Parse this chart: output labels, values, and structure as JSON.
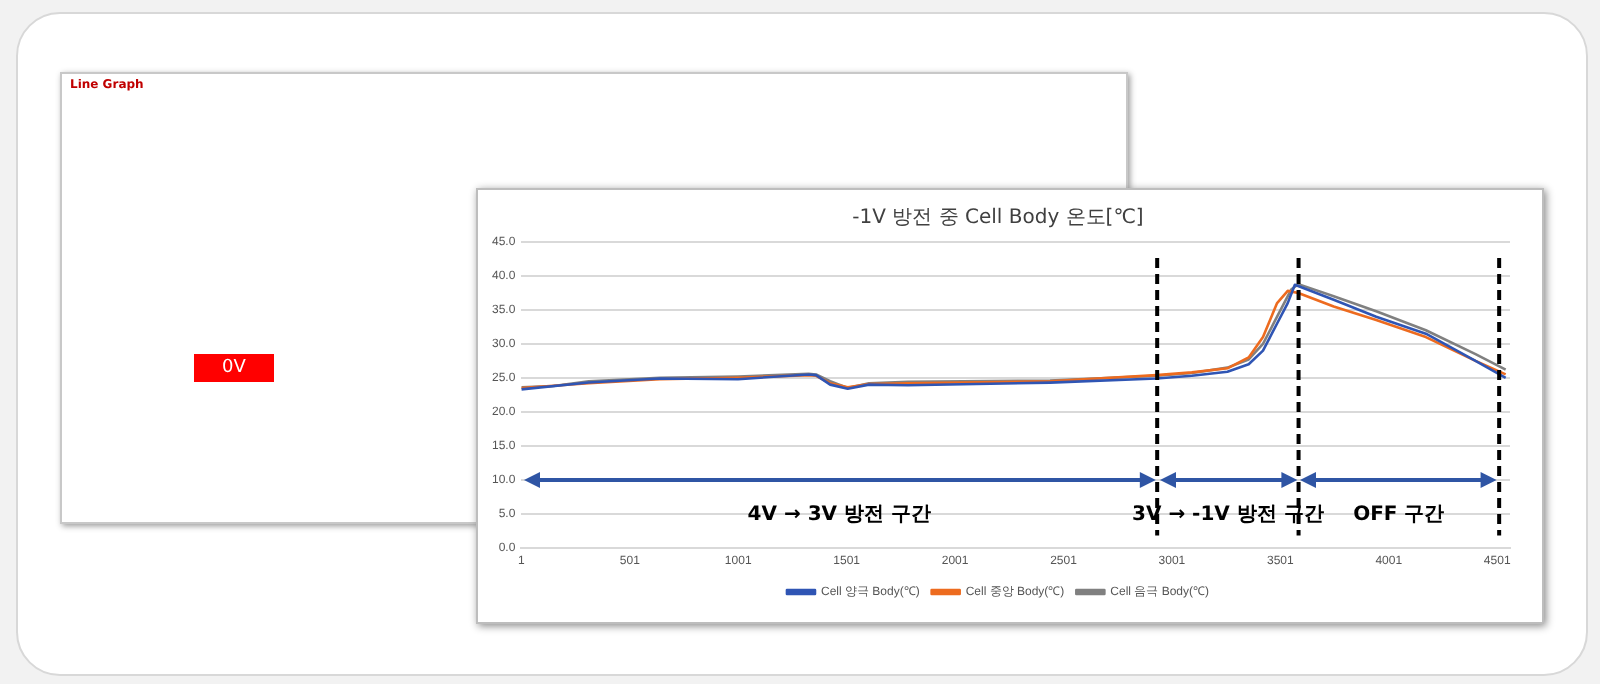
{
  "chart_data": {
    "type": "line",
    "title": "-1V 방전 중 Cell Body 온도[℃]",
    "xlim": [
      1,
      4560
    ],
    "xticks": [
      1,
      501,
      1001,
      1501,
      2001,
      2501,
      3001,
      3501,
      4001,
      4501
    ],
    "ylim": [
      0,
      45
    ],
    "yticks": [
      {
        "value": 0,
        "label": "0.0"
      },
      {
        "value": 5,
        "label": "5.0"
      },
      {
        "value": 10,
        "label": "10.0"
      },
      {
        "value": 15,
        "label": "15.0"
      },
      {
        "value": 20,
        "label": "20.0"
      },
      {
        "value": 25,
        "label": "25.0"
      },
      {
        "value": 30,
        "label": "30.0"
      },
      {
        "value": 35,
        "label": "35.0"
      },
      {
        "value": 40,
        "label": "40.0"
      },
      {
        "value": 45,
        "label": "45.0"
      }
    ],
    "grid": "y",
    "legend": "bottom",
    "marker": "none",
    "line_style": "solid",
    "series": [
      {
        "name": "Cell 양극 Body(℃)",
        "color": "#2f55b4",
        "x": [
          1,
          312,
          640,
          1000,
          1326,
          1360,
          1425,
          1506,
          1604,
          1784,
          2439,
          2930,
          3093,
          3257,
          3355,
          3421,
          3486,
          3535,
          3568,
          3747,
          3943,
          4172,
          4401,
          4540
        ],
        "values": [
          23.3,
          24.3,
          24.9,
          24.8,
          25.5,
          25.4,
          24.0,
          23.4,
          24.0,
          23.9,
          24.3,
          24.9,
          25.3,
          25.9,
          27,
          29,
          33,
          36,
          38.7,
          36.5,
          34,
          31.5,
          27.5,
          25.0
        ]
      },
      {
        "name": "Cell 중앙 Body(℃)",
        "color": "#ed6b1f",
        "x": [
          1,
          312,
          640,
          1000,
          1326,
          1360,
          1425,
          1506,
          1604,
          1784,
          2439,
          2930,
          3093,
          3257,
          3355,
          3421,
          3486,
          3535,
          3584,
          3747,
          3943,
          4172,
          4401,
          4540
        ],
        "values": [
          23.5,
          24.2,
          24.8,
          25.0,
          25.4,
          25.3,
          24.2,
          23.6,
          24.1,
          24.2,
          24.5,
          25.4,
          25.8,
          26.4,
          28,
          31,
          36,
          37.8,
          37.5,
          35.5,
          33.5,
          31,
          27.5,
          25.5
        ]
      },
      {
        "name": "Cell 음극 Body(℃)",
        "color": "#808080",
        "x": [
          1,
          150,
          312,
          640,
          1000,
          1326,
          1360,
          1425,
          1506,
          1604,
          1784,
          2439,
          2930,
          3093,
          3257,
          3355,
          3421,
          3486,
          3551,
          3584,
          3747,
          3943,
          4172,
          4401,
          4540
        ],
        "values": [
          23.6,
          23.8,
          24.5,
          25.0,
          25.2,
          25.6,
          25.5,
          24.5,
          23.5,
          24.2,
          24.4,
          24.6,
          25.3,
          25.7,
          26.5,
          27.7,
          30,
          34,
          38,
          38.8,
          37,
          34.8,
          32,
          28.5,
          26.2
        ]
      }
    ],
    "ref_lines": [
      {
        "axis": "x",
        "value": 2933,
        "color": "#000000",
        "line_style": "dashed"
      },
      {
        "axis": "x",
        "value": 3585,
        "color": "#000000",
        "line_style": "dashed"
      },
      {
        "axis": "x",
        "value": 4510,
        "color": "#000000",
        "line_style": "dashed"
      }
    ],
    "annotations": [
      "Line Graph",
      "0V",
      "4V → 3V 방전 구간",
      "3V → -1V 방전 구간",
      "OFF 구간"
    ]
  }
}
